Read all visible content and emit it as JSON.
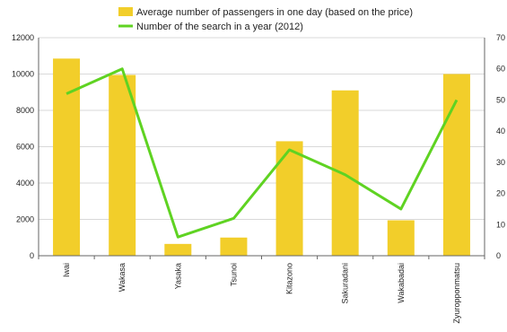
{
  "chart_data": {
    "type": "bar",
    "categories": [
      "Iwai",
      "Wakasa",
      "Yasaka",
      "Tsunoi",
      "Kitazono",
      "Sakuradani",
      "Wakabadai",
      "Zyuropponmatsu"
    ],
    "series": [
      {
        "name": "Average number of passengers in one day (based on the price)",
        "type": "bar",
        "axis": "left",
        "color": "#F2CE2A",
        "values": [
          10850,
          9950,
          650,
          1000,
          6300,
          9100,
          1950,
          10000
        ]
      },
      {
        "name": "Number of the search in a year (2012)",
        "type": "line",
        "axis": "right",
        "color": "#5FD322",
        "values": [
          52,
          60,
          6,
          12,
          34,
          26,
          15,
          50
        ]
      }
    ],
    "y_left": {
      "min": 0,
      "max": 12000,
      "ticks": [
        "0",
        "2000",
        "4000",
        "6000",
        "8000",
        "10000",
        "12000"
      ]
    },
    "y_right": {
      "min": 0,
      "max": 70,
      "ticks": [
        "0",
        "10",
        "20",
        "30",
        "40",
        "50",
        "60",
        "70"
      ]
    },
    "legend_position": "top-center",
    "grid": true
  }
}
